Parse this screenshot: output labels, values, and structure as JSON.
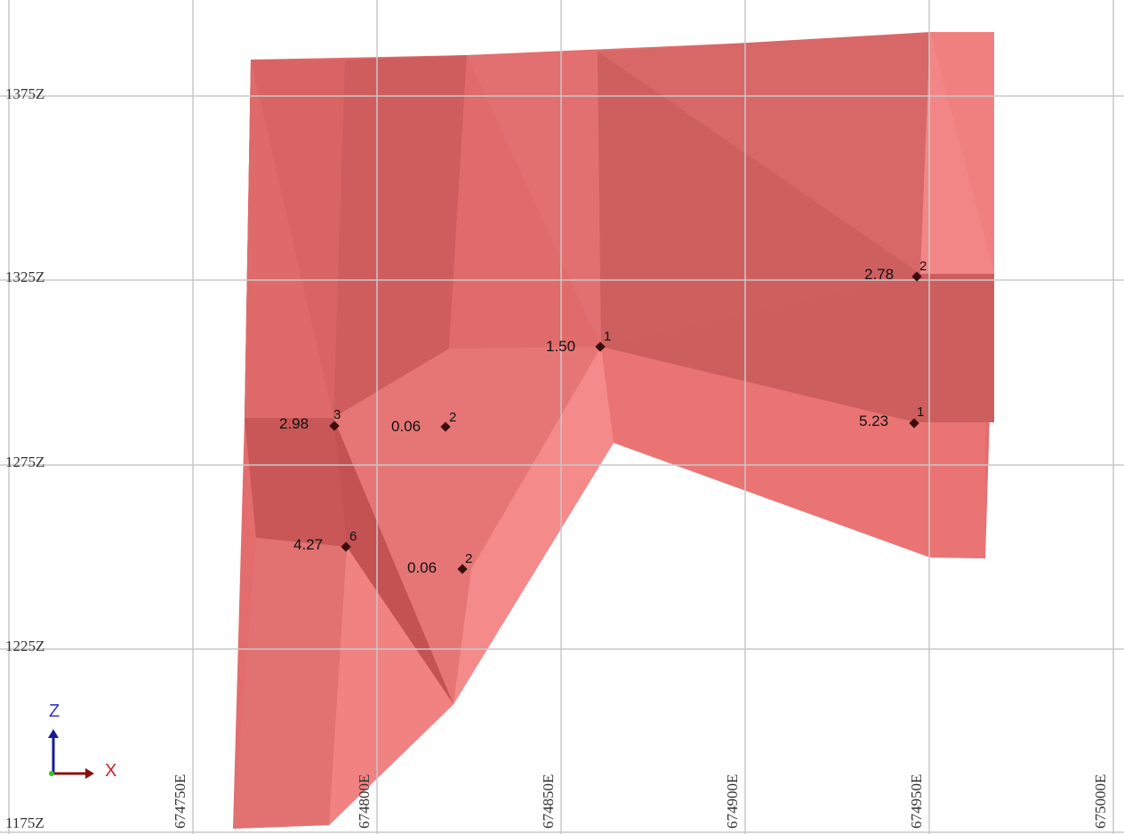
{
  "view": {
    "background": "#ffffff",
    "grid_color": "#c8c8c8",
    "solid_colors": [
      "#e06a6a",
      "#d05f5f",
      "#f08484",
      "#c95656",
      "#ea7474"
    ]
  },
  "z_axis_labels": [
    "1375Z",
    "1325Z",
    "1275Z",
    "1225Z",
    "1175Z"
  ],
  "e_axis_labels": [
    "674750E",
    "674800E",
    "674850E",
    "674900E",
    "674950E",
    "675000E"
  ],
  "sample_points": [
    {
      "value": "2.98",
      "count": "3"
    },
    {
      "value": "0.06",
      "count": "2"
    },
    {
      "value": "1.50",
      "count": "1"
    },
    {
      "value": "2.78",
      "count": "2"
    },
    {
      "value": "5.23",
      "count": "1"
    },
    {
      "value": "4.27",
      "count": "6"
    },
    {
      "value": "0.06",
      "count": "2"
    }
  ],
  "orientation_gizmo": {
    "z_label": "Z",
    "x_label": "X",
    "z_color": "#3333cc",
    "x_color": "#cc2222",
    "y_color": "#22cc22"
  }
}
